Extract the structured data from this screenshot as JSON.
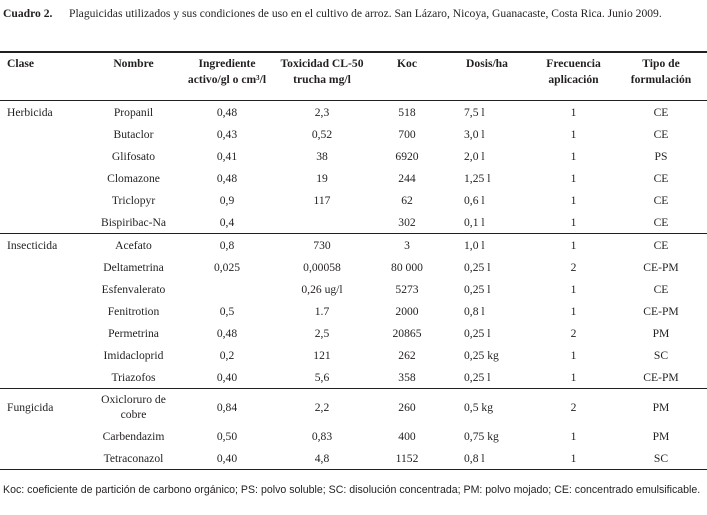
{
  "caption": {
    "label": "Cuadro 2.",
    "text": "Plaguicidas utilizados y sus condiciones de uso en el cultivo de arroz. San Lázaro, Nicoya, Guanacaste, Costa Rica. Junio 2009."
  },
  "table": {
    "headers": {
      "clase": "Clase",
      "nombre": "Nombre",
      "ingrediente": "Ingrediente activo/gl o cm³/l",
      "toxicidad": "Toxicidad CL-50 trucha mg/l",
      "koc": "Koc",
      "dosis": "Dosis/ha",
      "frecuencia": "Frecuencia aplicación",
      "tipo": "Tipo de formulación"
    },
    "rows": [
      {
        "clase": "Herbicida",
        "nombre": "Propanil",
        "ingrediente": "0,48",
        "toxicidad": "2,3",
        "koc": "518",
        "dosis": "7,5 l",
        "frecuencia": "1",
        "tipo": "CE"
      },
      {
        "clase": "",
        "nombre": "Butaclor",
        "ingrediente": "0,43",
        "toxicidad": "0,52",
        "koc": "700",
        "dosis": "3,0 l",
        "frecuencia": "1",
        "tipo": "CE"
      },
      {
        "clase": "",
        "nombre": "Glifosato",
        "ingrediente": "0,41",
        "toxicidad": "38",
        "koc": "6920",
        "dosis": "2,0 l",
        "frecuencia": "1",
        "tipo": "PS"
      },
      {
        "clase": "",
        "nombre": "Clomazone",
        "ingrediente": "0,48",
        "toxicidad": "19",
        "koc": "244",
        "dosis": "1,25 l",
        "frecuencia": "1",
        "tipo": "CE"
      },
      {
        "clase": "",
        "nombre": "Triclopyr",
        "ingrediente": "0,9",
        "toxicidad": "117",
        "koc": "62",
        "dosis": "0,6 l",
        "frecuencia": "1",
        "tipo": "CE"
      },
      {
        "clase": "",
        "nombre": "Bispiribac-Na",
        "ingrediente": "0,4",
        "toxicidad": "",
        "koc": "302",
        "dosis": "0,1 l",
        "frecuencia": "1",
        "tipo": "CE"
      },
      {
        "clase": "Insecticida",
        "nombre": "Acefato",
        "ingrediente": "0,8",
        "toxicidad": "730",
        "koc": "3",
        "dosis": "1,0 l",
        "frecuencia": "1",
        "tipo": "CE"
      },
      {
        "clase": "",
        "nombre": "Deltametrina",
        "ingrediente": "0,025",
        "toxicidad": "0,00058",
        "koc": "80 000",
        "dosis": "0,25 l",
        "frecuencia": "2",
        "tipo": "CE-PM"
      },
      {
        "clase": "",
        "nombre": "Esfenvalerato",
        "ingrediente": "",
        "toxicidad": "0,26 ug/l",
        "koc": "5273",
        "dosis": "0,25 l",
        "frecuencia": "1",
        "tipo": "CE"
      },
      {
        "clase": "",
        "nombre": "Fenitrotion",
        "ingrediente": "0,5",
        "toxicidad": "1.7",
        "koc": "2000",
        "dosis": "0,8 l",
        "frecuencia": "1",
        "tipo": "CE-PM"
      },
      {
        "clase": "",
        "nombre": "Permetrina",
        "ingrediente": "0,48",
        "toxicidad": "2,5",
        "koc": "20865",
        "dosis": "0,25 l",
        "frecuencia": "2",
        "tipo": "PM"
      },
      {
        "clase": "",
        "nombre": "Imidacloprid",
        "ingrediente": "0,2",
        "toxicidad": "121",
        "koc": "262",
        "dosis": "0,25 kg",
        "frecuencia": "1",
        "tipo": "SC"
      },
      {
        "clase": "",
        "nombre": "Triazofos",
        "ingrediente": "0,40",
        "toxicidad": "5,6",
        "koc": "358",
        "dosis": "0,25 l",
        "frecuencia": "1",
        "tipo": "CE-PM"
      },
      {
        "clase": "Fungicida",
        "nombre": "Oxicloruro de cobre",
        "ingrediente": "0,84",
        "toxicidad": "2,2",
        "koc": "260",
        "dosis": "0,5 kg",
        "frecuencia": "2",
        "tipo": "PM"
      },
      {
        "clase": "",
        "nombre": "Carbendazim",
        "ingrediente": "0,50",
        "toxicidad": "0,83",
        "koc": "400",
        "dosis": "0,75 kg",
        "frecuencia": "1",
        "tipo": "PM"
      },
      {
        "clase": "",
        "nombre": "Tetraconazol",
        "ingrediente": "0,40",
        "toxicidad": "4,8",
        "koc": "1152",
        "dosis": "0,8 l",
        "frecuencia": "1",
        "tipo": "SC"
      }
    ]
  },
  "footnote": "Koc: coeficiente de partición de carbono orgánico; PS: polvo soluble; SC: disolución concentrada; PM: polvo mojado; CE: concentrado emulsificable."
}
